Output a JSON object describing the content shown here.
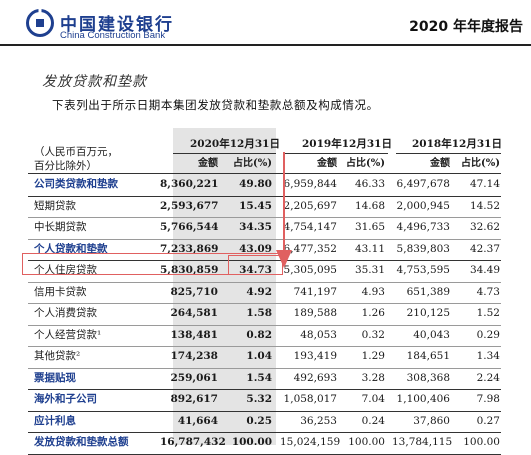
{
  "header": {
    "bank_name_cn": "中国建设银行",
    "bank_name_en": "China Construction Bank",
    "report_title": "2020 年年度报告"
  },
  "section": {
    "title": "发放贷款和垫款",
    "intro": "下表列出于所示日期本集团发放贷款和垫款总额及构成情况。"
  },
  "table": {
    "unit_line1": "（人民币百万元，",
    "unit_line2": "百分比除外）",
    "columns": [
      {
        "date": "2020年12月31日",
        "amount_label": "金额",
        "pct_label": "占比(%)"
      },
      {
        "date": "2019年12月31日",
        "amount_label": "金额",
        "pct_label": "占比(%)"
      },
      {
        "date": "2018年12月31日",
        "amount_label": "金额",
        "pct_label": "占比(%)"
      }
    ],
    "rows": [
      {
        "label": "公司类贷款和垫款",
        "style": "category",
        "values": [
          "8,360,221",
          "49.80",
          "6,959,844",
          "46.33",
          "6,497,678",
          "47.14"
        ]
      },
      {
        "label": "短期贷款",
        "style": "item",
        "values": [
          "2,593,677",
          "15.45",
          "2,205,697",
          "14.68",
          "2,000,945",
          "14.52"
        ]
      },
      {
        "label": "中长期贷款",
        "style": "item",
        "values": [
          "5,766,544",
          "34.35",
          "4,754,147",
          "31.65",
          "4,496,733",
          "32.62"
        ]
      },
      {
        "label": "个人贷款和垫款",
        "style": "category",
        "values": [
          "7,233,869",
          "43.09",
          "6,477,352",
          "43.11",
          "5,839,803",
          "42.37"
        ]
      },
      {
        "label": "个人住房贷款",
        "style": "item",
        "values": [
          "5,830,859",
          "34.73",
          "5,305,095",
          "35.31",
          "4,753,595",
          "34.49"
        ]
      },
      {
        "label": "信用卡贷款",
        "style": "item",
        "values": [
          "825,710",
          "4.92",
          "741,197",
          "4.93",
          "651,389",
          "4.73"
        ]
      },
      {
        "label": "个人消费贷款",
        "style": "item",
        "values": [
          "264,581",
          "1.58",
          "189,588",
          "1.26",
          "210,125",
          "1.52"
        ]
      },
      {
        "label": "个人经营贷款¹",
        "style": "item",
        "values": [
          "138,481",
          "0.82",
          "48,053",
          "0.32",
          "40,043",
          "0.29"
        ]
      },
      {
        "label": "其他贷款²",
        "style": "item",
        "values": [
          "174,238",
          "1.04",
          "193,419",
          "1.29",
          "184,651",
          "1.34"
        ]
      },
      {
        "label": "票据贴现",
        "style": "category",
        "values": [
          "259,061",
          "1.54",
          "492,693",
          "3.28",
          "308,368",
          "2.24"
        ]
      },
      {
        "label": "海外和子公司",
        "style": "category",
        "values": [
          "892,617",
          "5.32",
          "1,058,017",
          "7.04",
          "1,100,406",
          "7.98"
        ]
      },
      {
        "label": "应计利息",
        "style": "category",
        "values": [
          "41,664",
          "0.25",
          "36,253",
          "0.24",
          "37,860",
          "0.27"
        ]
      },
      {
        "label": "发放贷款和垫款总额",
        "style": "total",
        "values": [
          "16,787,432",
          "100.00",
          "15,024,159",
          "100.00",
          "13,784,115",
          "100.00"
        ]
      }
    ]
  }
}
